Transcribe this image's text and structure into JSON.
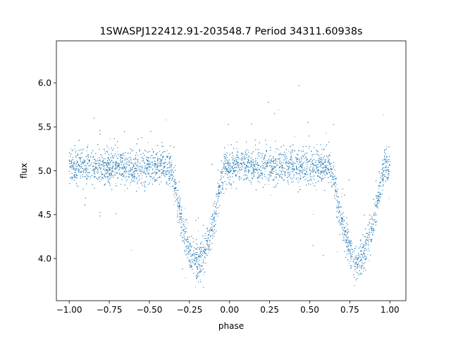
{
  "chart_data": {
    "type": "scatter",
    "title": "1SWASPJ122412.91-203548.7 Period 34311.60938s",
    "xlabel": "phase",
    "ylabel": "flux",
    "xlim": [
      -1.08,
      1.1
    ],
    "ylim": [
      3.52,
      6.48
    ],
    "x_ticks": [
      -1.0,
      -0.75,
      -0.5,
      -0.25,
      0.0,
      0.25,
      0.5,
      0.75,
      1.0
    ],
    "x_tick_labels": [
      "−1.00",
      "−0.75",
      "−0.50",
      "−0.25",
      "0.00",
      "0.25",
      "0.50",
      "0.75",
      "1.00"
    ],
    "y_ticks": [
      4.0,
      4.5,
      5.0,
      5.5,
      6.0
    ],
    "y_tick_labels": [
      "4.0",
      "4.5",
      "5.0",
      "5.5",
      "6.0"
    ],
    "grid": false,
    "point_color": "#1f77b4",
    "light_curve": {
      "x_range": [
        -1.0,
        1.0
      ],
      "baseline_flux": 5.05,
      "scatter_sigma": 0.1,
      "eclipses": [
        {
          "center_phase": -0.2,
          "min_flux": 3.98,
          "half_width": 0.17
        },
        {
          "center_phase": 0.8,
          "min_flux": 3.98,
          "half_width": 0.17
        }
      ]
    }
  }
}
